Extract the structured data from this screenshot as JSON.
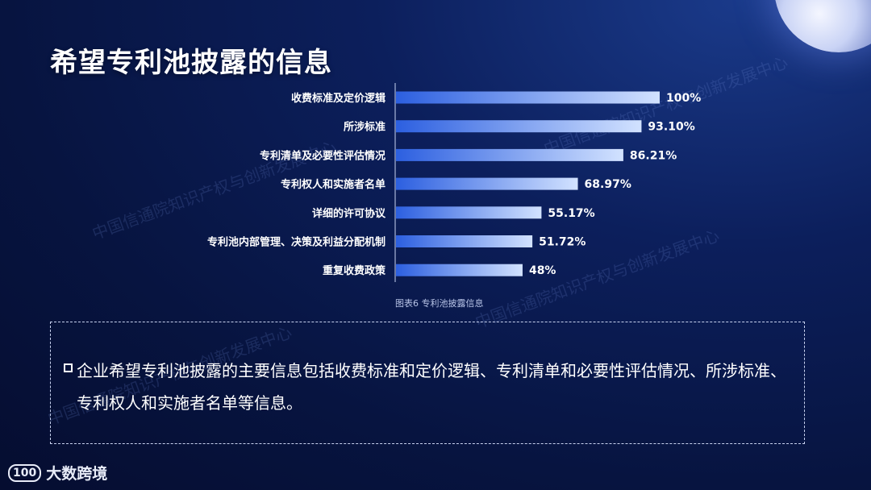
{
  "title": "希望专利池披露的信息",
  "caption": "图表6 专利池披露信息",
  "summary": "企业希望专利池披露的主要信息包括收费标准和定价逻辑、专利清单和必要性评估情况、所涉标准、专利权人和实施者名单等信息。",
  "watermark": "中国信通院知识产权与创新发展中心",
  "logo": {
    "mark": "100",
    "name": "大数跨境"
  },
  "colors": {
    "bar_start": "#2c5fe0",
    "bar_end": "#d2e2ff",
    "axis": "#c9d4f2"
  },
  "chart_data": {
    "type": "bar",
    "orientation": "horizontal",
    "categories": [
      "收费标准及定价逻辑",
      "所涉标准",
      "专利清单及必要性评估情况",
      "专利权人和实施者名单",
      "详细的许可协议",
      "专利池内部管理、决策及利益分配机制",
      "重复收费政策"
    ],
    "values": [
      100,
      93.1,
      86.21,
      68.97,
      55.17,
      51.72,
      48
    ],
    "value_labels": [
      "100%",
      "93.10%",
      "86.21%",
      "68.97%",
      "55.17%",
      "51.72%",
      "48%"
    ],
    "xlim": [
      0,
      100
    ],
    "grid": false,
    "legend": "none"
  }
}
